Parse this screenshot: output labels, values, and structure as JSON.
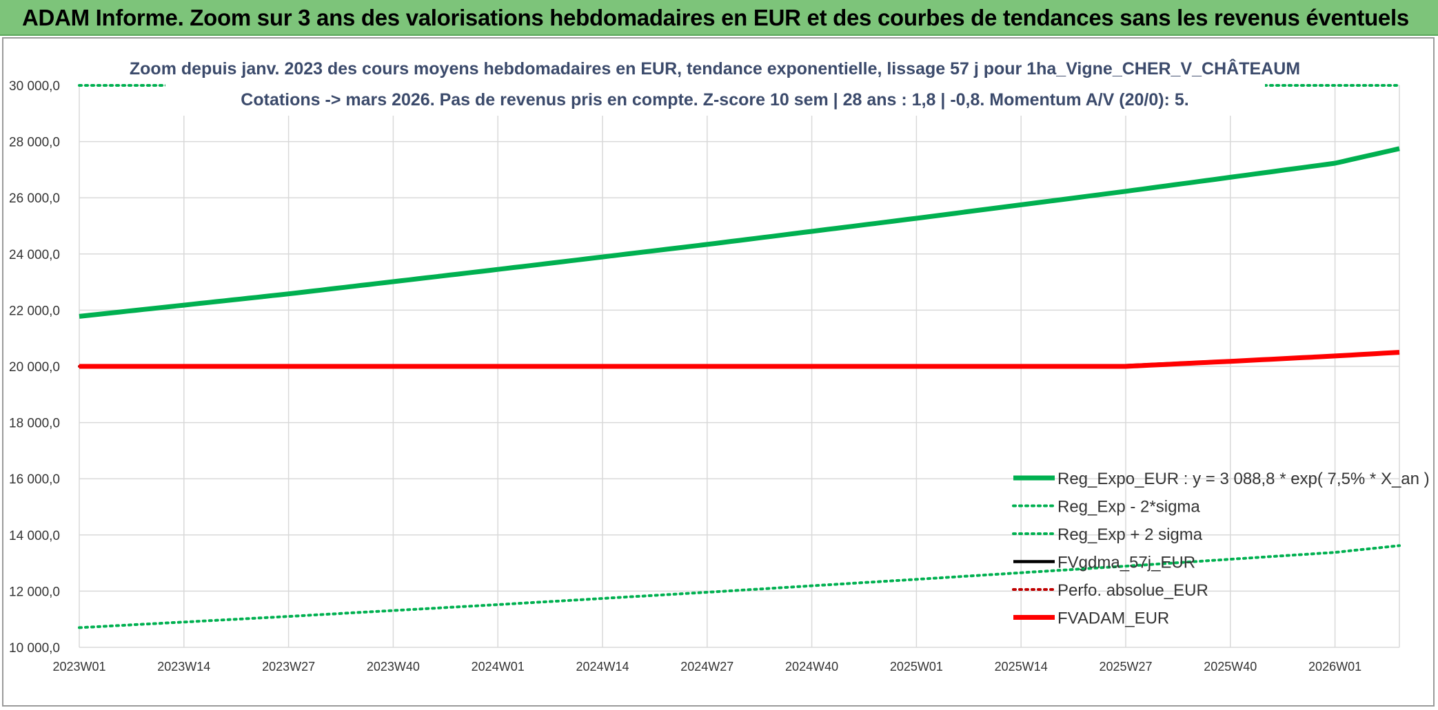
{
  "banner": {
    "title": "ADAM Informe. Zoom sur 3 ans des valorisations hebdomadaires en EUR et des courbes de tendances sans les revenus éventuels"
  },
  "colors": {
    "banner_bg": "#7dc47a",
    "reg_expo": "#00b050",
    "fvgdma": "#000000",
    "perfo": "#c00000",
    "fvadam": "#ff0000"
  },
  "chart_data": {
    "type": "line",
    "title_lines": [
      "Zoom depuis janv. 2023 des cours moyens hebdomadaires en EUR, tendance exponentielle, lissage 57 j pour 1ha_Vigne_CHER_V_CHÂTEAUM",
      "Cotations -> mars 2026. Pas de revenus pris en compte. Z-score 10 sem | 28 ans : 1,8 | -0,8. Momentum A/V (20/0): 5."
    ],
    "ylim": [
      10000,
      30000
    ],
    "yticks": [
      "10 000,0",
      "12 000,0",
      "14 000,0",
      "16 000,0",
      "18 000,0",
      "20 000,0",
      "22 000,0",
      "24 000,0",
      "26 000,0",
      "28 000,0",
      "30 000,0"
    ],
    "ytick_values": [
      10000,
      12000,
      14000,
      16000,
      18000,
      20000,
      22000,
      24000,
      26000,
      28000,
      30000
    ],
    "xlim_weeks": [
      0,
      164
    ],
    "xticks": [
      {
        "label": "2023W01",
        "week": 0
      },
      {
        "label": "2023W14",
        "week": 13
      },
      {
        "label": "2023W27",
        "week": 26
      },
      {
        "label": "2023W40",
        "week": 39
      },
      {
        "label": "2024W01",
        "week": 52
      },
      {
        "label": "2024W14",
        "week": 65
      },
      {
        "label": "2024W27",
        "week": 78
      },
      {
        "label": "2024W40",
        "week": 91
      },
      {
        "label": "2025W01",
        "week": 104
      },
      {
        "label": "2025W14",
        "week": 117
      },
      {
        "label": "2025W27",
        "week": 130
      },
      {
        "label": "2025W40",
        "week": 143
      },
      {
        "label": "2026W01",
        "week": 156
      }
    ],
    "grid": true,
    "legend_position": "bottom-right",
    "series": [
      {
        "name": "Reg_Expo_EUR : y = 3 088,8 * exp( 7,5% *  X_an )",
        "style": "solid-thick",
        "color": "#00b050",
        "points": [
          [
            0,
            21780
          ],
          [
            26,
            22580
          ],
          [
            52,
            23450
          ],
          [
            78,
            24340
          ],
          [
            104,
            25270
          ],
          [
            130,
            26230
          ],
          [
            156,
            27230
          ],
          [
            164,
            27750
          ]
        ]
      },
      {
        "name": "Reg_Exp - 2*sigma",
        "style": "dotted",
        "color": "#00b050",
        "points": [
          [
            0,
            10700
          ],
          [
            26,
            11100
          ],
          [
            52,
            11520
          ],
          [
            78,
            11960
          ],
          [
            104,
            12420
          ],
          [
            130,
            12890
          ],
          [
            156,
            13380
          ],
          [
            164,
            13620
          ]
        ]
      },
      {
        "name": "Reg_Exp + 2 sigma",
        "style": "dotted",
        "color": "#00b050",
        "points": [
          [
            0,
            30000
          ],
          [
            164,
            30000
          ]
        ]
      },
      {
        "name": "FVgdma_57j_EUR",
        "style": "solid",
        "color": "#000000",
        "points": [
          [
            0,
            20000
          ],
          [
            117,
            20000
          ],
          [
            130,
            20030
          ],
          [
            143,
            20200
          ],
          [
            156,
            20380
          ],
          [
            164,
            20500
          ]
        ]
      },
      {
        "name": "Perfo. absolue_EUR",
        "style": "dotted",
        "color": "#c00000",
        "points": [
          [
            0,
            20000
          ],
          [
            130,
            20000
          ],
          [
            143,
            20180
          ],
          [
            156,
            20370
          ],
          [
            164,
            20500
          ]
        ]
      },
      {
        "name": "FVADAM_EUR",
        "style": "solid-thick",
        "color": "#ff0000",
        "points": [
          [
            0,
            20000
          ],
          [
            130,
            20000
          ],
          [
            143,
            20180
          ],
          [
            156,
            20370
          ],
          [
            164,
            20500
          ]
        ]
      }
    ]
  }
}
